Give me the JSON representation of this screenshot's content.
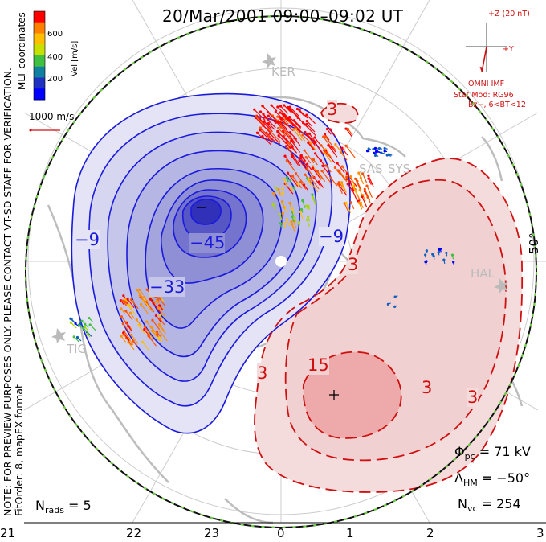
{
  "title": "20/Mar/2001 09:00–09:02 UT",
  "side_note": [
    "NOTE: FOR PREVIEW PURPOSES ONLY. PLEASE CONTACT VT-SD STAFF FOR VERIFICATION.",
    "FitOrder: 8, mapEX format"
  ],
  "coordinates_label": "MLT coordinates",
  "colorbar": {
    "label": "Vel [m/s]",
    "ticks": [
      "600",
      "400",
      "200"
    ],
    "colors": [
      "#ff0000",
      "#ff7f00",
      "#ffbf00",
      "#c8e000",
      "#40c040",
      "#1080a0",
      "#2030c0",
      "#0000ff"
    ]
  },
  "reference_vector": "1000 m/s",
  "imf": {
    "z_label": "+Z (20 nT)",
    "y_label": "+Y",
    "omni": "OMNI IMF",
    "stat_mod": "Stat Mod: RG96",
    "bz": "Bz−, 6<BT<12"
  },
  "radars": [
    "KER",
    "SAS",
    "SYS",
    "HAL",
    "TIG"
  ],
  "contour_labels": {
    "negative": [
      "−9",
      "−45",
      "−33",
      "−9"
    ],
    "positive": [
      "3",
      "3",
      "3",
      "15",
      "3",
      "3"
    ]
  },
  "latitude_label": "50°",
  "stats": {
    "phi_pc_sym": "Φ",
    "phi_pc_sub": "pc",
    "phi_pc_val": "= 71 kV",
    "lambda_sym": "Λ",
    "lambda_sub": "HM",
    "lambda_val": "= −50°",
    "nvc_sym": "N",
    "nvc_sub": "vc",
    "nvc_val": "= 254",
    "nrads_sym": "N",
    "nrads_sub": "rads",
    "nrads_val": "= 5"
  },
  "mlt_labels": [
    "21",
    "22",
    "23",
    "0",
    "1",
    "2",
    "3"
  ],
  "colors": {
    "negative_line": "#1a1adc",
    "positive_line": "#d01010",
    "grid": "#c8c8c8",
    "continent": "#b8b8b8"
  }
}
